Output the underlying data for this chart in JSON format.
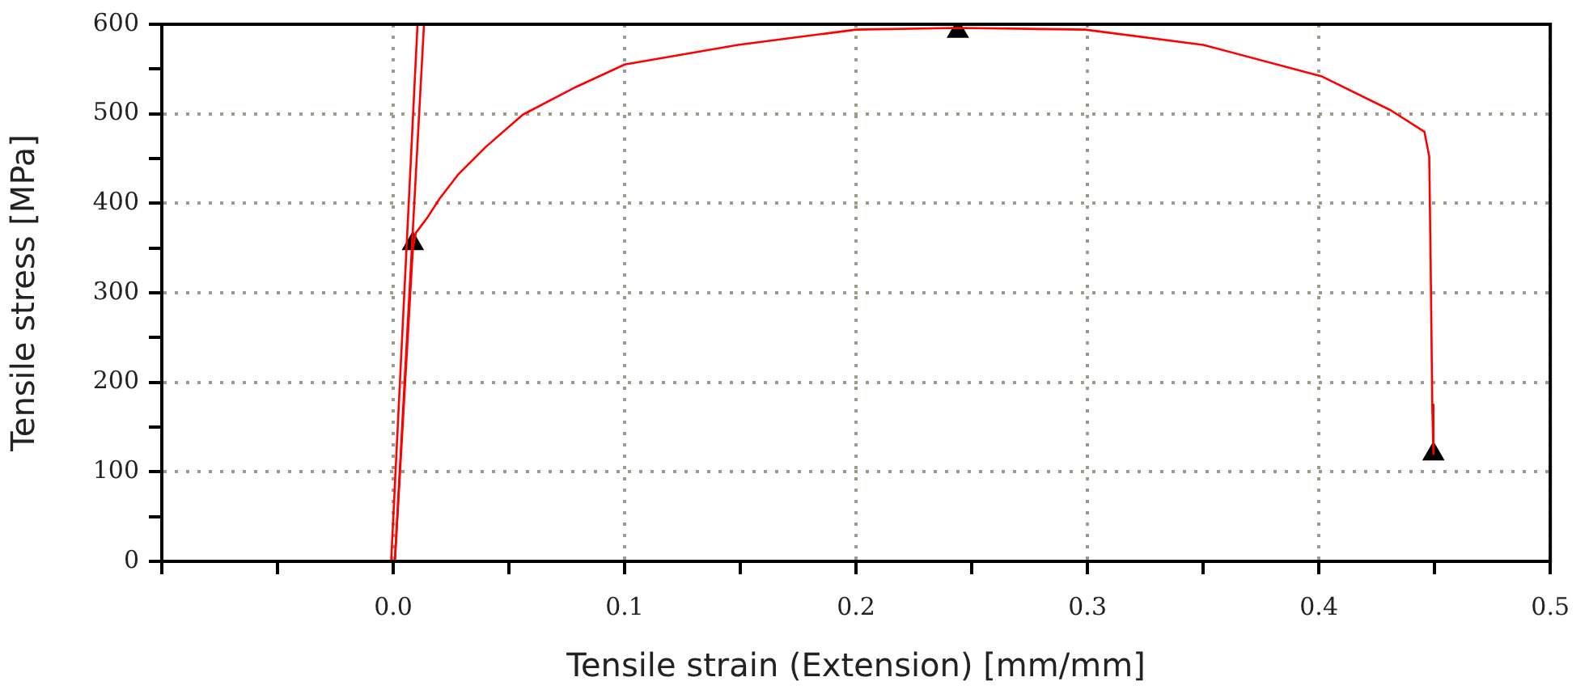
{
  "chart_data": {
    "type": "line",
    "xlabel": "Tensile strain (Extension) [mm/mm]",
    "ylabel": "Tensile stress [MPa]",
    "xlim": [
      -0.1,
      0.5
    ],
    "ylim": [
      0,
      600
    ],
    "xticks": [
      {
        "value": -0.1,
        "label": null
      },
      {
        "value": -0.05,
        "label": null
      },
      {
        "value": 0,
        "label": "0.0"
      },
      {
        "value": 0.05,
        "label": null
      },
      0.1,
      {
        "value": 0.15,
        "label": null
      },
      0.2,
      {
        "value": 0.25,
        "label": null
      },
      0.3,
      {
        "value": 0.35,
        "label": null
      },
      0.4,
      {
        "value": 0.45,
        "label": null
      },
      0.5
    ],
    "yticks": [
      0,
      {
        "value": 50,
        "label": null
      },
      100,
      {
        "value": 150,
        "label": null
      },
      200,
      {
        "value": 250,
        "label": null
      },
      300,
      {
        "value": 350,
        "label": null
      },
      400,
      {
        "value": 450,
        "label": null
      },
      500,
      {
        "value": 550,
        "label": null
      },
      600
    ],
    "grid": true,
    "legend": false,
    "marker": "none",
    "line_style": "solid",
    "series": [
      {
        "color": "#ff0000",
        "x": [
          0.0007,
          0.0085,
          0.0098,
          0.015,
          0.02,
          0.028,
          0.04,
          0.056,
          0.079,
          0.1,
          0.149,
          0.2,
          0.244,
          0.299,
          0.35,
          0.401,
          0.431,
          0.4456,
          0.4477,
          0.4484,
          0.449,
          0.4495
        ],
        "values": [
          0,
          350,
          367,
          385,
          405,
          432,
          463,
          499,
          530,
          555,
          577,
          594,
          596,
          594,
          577,
          542,
          504,
          480,
          452,
          313,
          175,
          120
        ]
      },
      {
        "color": "#ff0000",
        "x": [
          -0.0009,
          0.0105
        ],
        "values": [
          0,
          600
        ]
      },
      {
        "color": "#ff0000",
        "x": [
          0.0007,
          0.0133
        ],
        "values": [
          0,
          600
        ]
      },
      {
        "type": "scatter",
        "color": "#000000",
        "marker": "triangle",
        "x": [
          0.0085,
          0.244,
          0.4495
        ],
        "values": [
          355,
          592,
          120
        ]
      }
    ]
  }
}
